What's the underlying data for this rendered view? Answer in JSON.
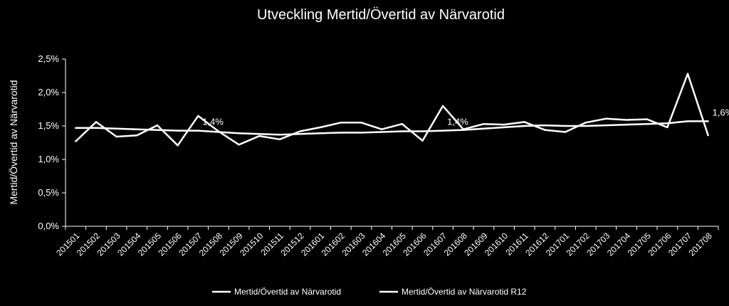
{
  "chart_data": {
    "type": "line",
    "title": "Utveckling Mertid/Övertid av Närvarotid",
    "xlabel": "",
    "ylabel": "Mertid/Övertid av Närvarotid",
    "ylim": [
      0,
      2.5
    ],
    "y_ticks": [
      "0,0%",
      "0,5%",
      "1,0%",
      "1,5%",
      "2,0%",
      "2,5%"
    ],
    "y_tick_values": [
      0,
      0.5,
      1.0,
      1.5,
      2.0,
      2.5
    ],
    "grid": false,
    "legend_position": "bottom",
    "categories": [
      "201501",
      "201502",
      "201503",
      "201504",
      "201505",
      "201506",
      "201507",
      "201508",
      "201509",
      "201510",
      "201511",
      "201512",
      "201601",
      "201602",
      "201603",
      "201604",
      "201605",
      "201606",
      "201607",
      "201608",
      "201609",
      "201610",
      "201611",
      "201612",
      "201701",
      "201702",
      "201703",
      "201704",
      "201705",
      "201706",
      "201707",
      "201708"
    ],
    "series": [
      {
        "name": "Mertid/Övertid av Närvarotid",
        "values": [
          1.27,
          1.56,
          1.34,
          1.36,
          1.51,
          1.21,
          1.65,
          1.42,
          1.22,
          1.35,
          1.3,
          1.42,
          1.48,
          1.55,
          1.55,
          1.45,
          1.53,
          1.28,
          1.8,
          1.45,
          1.53,
          1.52,
          1.56,
          1.44,
          1.41,
          1.55,
          1.61,
          1.59,
          1.6,
          1.48,
          2.28,
          1.36
        ]
      },
      {
        "name": "Mertid/Övertid av Närvarotid R12",
        "values": [
          1.47,
          1.47,
          1.46,
          1.45,
          1.44,
          1.43,
          1.43,
          1.41,
          1.39,
          1.38,
          1.37,
          1.38,
          1.39,
          1.4,
          1.4,
          1.41,
          1.42,
          1.42,
          1.43,
          1.44,
          1.46,
          1.48,
          1.5,
          1.51,
          1.5,
          1.5,
          1.51,
          1.52,
          1.53,
          1.54,
          1.57,
          1.57
        ]
      }
    ],
    "annotations": [
      {
        "text": "1,4%",
        "category_index": 6,
        "value": 1.4
      },
      {
        "text": "1,4%",
        "category_index": 18,
        "value": 1.4
      },
      {
        "text": "1,6%",
        "category_index": 31,
        "value": 1.6
      }
    ],
    "colors": {
      "background": "#000000",
      "line": "#ffffff",
      "axis": "#ffffff"
    }
  }
}
